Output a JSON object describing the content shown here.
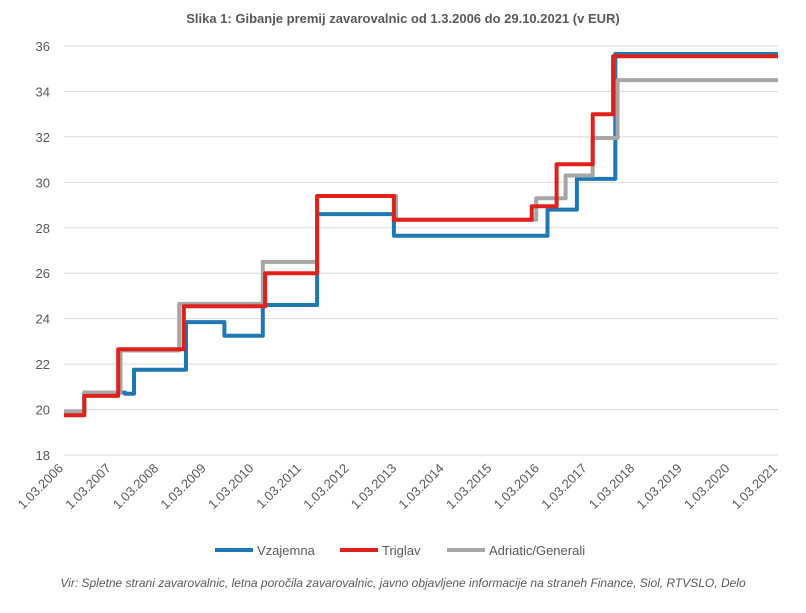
{
  "chart_data": {
    "type": "line",
    "title": "Slika 1: Gibanje premij zavarovalnic od 1.3.2006 do 29.10.2021 (v EUR)",
    "x_ticks": [
      "1.03.2006",
      "1.03.2007",
      "1.03.2008",
      "1.03.2009",
      "1.03.2010",
      "1.03.2011",
      "1.03.2012",
      "1.03.2013",
      "1.03.2014",
      "1.03.2015",
      "1.03.2016",
      "1.03.2017",
      "1.03.2018",
      "1.03.2019",
      "1.03.2020",
      "1.03.2021"
    ],
    "x_start": 2006.0,
    "x_end": 2021.8,
    "y_ticks": [
      18,
      20,
      22,
      24,
      26,
      28,
      30,
      32,
      34,
      36
    ],
    "ylim": [
      18,
      36
    ],
    "grid": "horizontal",
    "legend_position": "bottom",
    "series": [
      {
        "name": "Vzajemna",
        "color": "#1F77B4",
        "points": [
          [
            2006.0,
            19.9
          ],
          [
            2006.45,
            19.9
          ],
          [
            2006.45,
            20.75
          ],
          [
            2007.35,
            20.75
          ],
          [
            2007.35,
            20.7
          ],
          [
            2007.55,
            20.7
          ],
          [
            2007.55,
            21.75
          ],
          [
            2008.7,
            21.75
          ],
          [
            2008.7,
            23.85
          ],
          [
            2009.55,
            23.85
          ],
          [
            2009.55,
            23.25
          ],
          [
            2010.4,
            23.25
          ],
          [
            2010.4,
            24.6
          ],
          [
            2011.6,
            24.6
          ],
          [
            2011.6,
            28.6
          ],
          [
            2013.3,
            28.6
          ],
          [
            2013.3,
            27.65
          ],
          [
            2016.7,
            27.65
          ],
          [
            2016.7,
            28.8
          ],
          [
            2017.35,
            28.8
          ],
          [
            2017.35,
            30.15
          ],
          [
            2018.2,
            30.15
          ],
          [
            2018.2,
            35.65
          ],
          [
            2021.8,
            35.65
          ]
        ]
      },
      {
        "name": "Triglav",
        "color": "#E0201B",
        "points": [
          [
            2006.0,
            19.75
          ],
          [
            2006.45,
            19.75
          ],
          [
            2006.45,
            20.6
          ],
          [
            2007.2,
            20.6
          ],
          [
            2007.2,
            22.65
          ],
          [
            2008.65,
            22.65
          ],
          [
            2008.65,
            24.55
          ],
          [
            2010.45,
            24.55
          ],
          [
            2010.45,
            26.0
          ],
          [
            2011.6,
            26.0
          ],
          [
            2011.6,
            29.4
          ],
          [
            2013.3,
            29.4
          ],
          [
            2013.3,
            28.35
          ],
          [
            2016.35,
            28.35
          ],
          [
            2016.35,
            28.95
          ],
          [
            2016.9,
            28.95
          ],
          [
            2016.9,
            30.8
          ],
          [
            2017.7,
            30.8
          ],
          [
            2017.7,
            33.0
          ],
          [
            2018.15,
            33.0
          ],
          [
            2018.15,
            35.55
          ],
          [
            2021.8,
            35.55
          ]
        ]
      },
      {
        "name": "Adriatic/Generali",
        "color": "#A6A6A6",
        "points": [
          [
            2006.0,
            19.9
          ],
          [
            2006.45,
            19.9
          ],
          [
            2006.45,
            20.75
          ],
          [
            2007.25,
            20.75
          ],
          [
            2007.25,
            22.6
          ],
          [
            2008.55,
            22.6
          ],
          [
            2008.55,
            24.65
          ],
          [
            2010.4,
            24.65
          ],
          [
            2010.4,
            26.5
          ],
          [
            2011.6,
            26.5
          ],
          [
            2011.6,
            29.4
          ],
          [
            2013.35,
            29.4
          ],
          [
            2013.35,
            28.35
          ],
          [
            2016.45,
            28.35
          ],
          [
            2016.45,
            29.3
          ],
          [
            2017.1,
            29.3
          ],
          [
            2017.1,
            30.3
          ],
          [
            2017.7,
            30.3
          ],
          [
            2017.7,
            31.95
          ],
          [
            2018.25,
            31.95
          ],
          [
            2018.25,
            34.5
          ],
          [
            2021.8,
            34.5
          ]
        ]
      }
    ]
  },
  "source_text": "Vir: Spletne strani zavarovalnic, letna poročila zavarovalnic, javno objavljene informacije na straneh Finance, Siol, RTVSLO, Delo"
}
